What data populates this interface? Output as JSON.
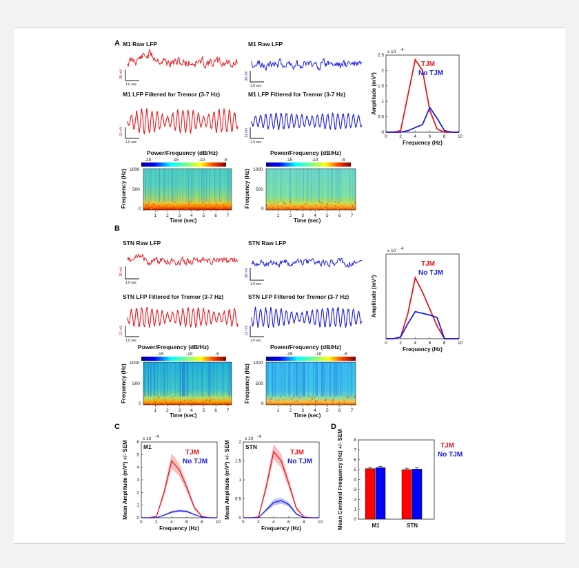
{
  "panels": {
    "a": "A",
    "b": "B",
    "c": "C",
    "d": "D"
  },
  "legend": {
    "tjm": "TJM",
    "no_tjm": "No TJM"
  },
  "colors": {
    "tjm": "#e8161c",
    "no_tjm": "#1a1ae6",
    "bar_red": "#ff0000",
    "bar_blue": "#0000ff"
  },
  "a": {
    "m1_raw_left": "M1 Raw LFP",
    "m1_raw_right": "M1 Raw LFP",
    "m1_filt_left": "M1 LFP Filtered for Tremor (3-7 Hz)",
    "m1_filt_right": "M1 LFP Filtered for Tremor (3-7 Hz)",
    "raw_scale_left": ".38 mV",
    "raw_scale_right": ".38 mV",
    "filt_scale_left": ".11 mV",
    "filt_scale_right": ".11 mV",
    "time_scale": "1.0 sec",
    "spec_left": {
      "title": "Power/Frequency (dB/Hz)",
      "ticks": [
        "-20",
        "-15",
        "-10",
        "-5"
      ]
    },
    "spec_right": {
      "title": "Power/Frequency (dB/Hz)",
      "ticks": [
        "-15",
        "-10",
        "-5"
      ]
    },
    "exponent": "x 10"
  },
  "b": {
    "stn_raw_left": "STN Raw LFP",
    "stn_raw_right": "STN Raw LFP",
    "stn_filt_left": "STN LFP Filtered for Tremor (3-7 Hz)",
    "stn_filt_right": "STN LFP Filtered for Tremor (3-7 Hz)",
    "raw_scale_left": ".38 mV",
    "raw_scale_right": ".38 mV",
    "filt_scale_left": ".11 mV",
    "filt_scale_right": ".11 mV",
    "time_scale": "1.0 sec",
    "spec_left": {
      "title": "Power/Frequency (dB/Hz)",
      "ticks": [
        "-15",
        "-10",
        "-5"
      ]
    },
    "spec_right": {
      "title": "Power/Frequency (dB/Hz)",
      "ticks": [
        "-15",
        "-10",
        "-5"
      ]
    },
    "exponent": "x 10"
  },
  "spec_axes": {
    "ylabel": "Frequency (Hz)",
    "xlabel": "Time (sec)",
    "yticks": [
      "1000",
      "500",
      "0"
    ],
    "xticks": [
      "1",
      "2",
      "3",
      "4",
      "5",
      "6",
      "7"
    ]
  },
  "c": {
    "m1": "M1",
    "stn": "STN",
    "exponent": "x 10"
  },
  "d": {
    "groups": [
      "M1",
      "STN"
    ]
  },
  "chart_data": [
    {
      "type": "line",
      "panel": "A",
      "xlabel": "Frequency (Hz)",
      "ylabel": "Amplitude (mV²)",
      "xlim": [
        0,
        10
      ],
      "ylim": [
        0,
        2.5
      ],
      "y_exponent": "x 10^-4",
      "xticks": [
        "0",
        "2",
        "4",
        "6",
        "8",
        "10"
      ],
      "yticks": [
        "0",
        "0.5",
        "1",
        "1.5",
        "2",
        "2.5"
      ],
      "x": [
        0,
        1,
        2,
        3,
        4,
        5,
        6,
        7,
        8,
        9,
        10
      ],
      "series": [
        {
          "name": "TJM",
          "values": [
            0,
            0,
            0.05,
            1.2,
            2.35,
            2.0,
            0.7,
            0.1,
            0,
            0,
            0
          ]
        },
        {
          "name": "No TJM",
          "values": [
            0,
            0,
            0,
            0.05,
            0.15,
            0.25,
            0.8,
            0.45,
            0.05,
            0,
            0
          ]
        }
      ]
    },
    {
      "type": "line",
      "panel": "B",
      "xlabel": "Frequency (Hz)",
      "ylabel": "Amplitude (mV²)",
      "xlim": [
        0,
        10
      ],
      "ylim": [
        0,
        1
      ],
      "y_exponent": "x 10^-4",
      "xticks": [
        "0",
        "2",
        "4",
        "6",
        "8",
        "10"
      ],
      "yticks": [],
      "x": [
        0,
        1,
        2,
        3,
        4,
        5,
        6,
        7,
        8,
        9,
        10
      ],
      "series": [
        {
          "name": "TJM",
          "values": [
            0,
            0,
            0.02,
            0.3,
            0.72,
            0.55,
            0.35,
            0.15,
            0,
            0,
            0
          ]
        },
        {
          "name": "No TJM",
          "values": [
            0,
            0,
            0.02,
            0.18,
            0.32,
            0.3,
            0.28,
            0.25,
            0,
            0,
            0
          ]
        }
      ]
    },
    {
      "type": "area",
      "panel": "C",
      "title": "M1",
      "xlabel": "Frequency (Hz)",
      "ylabel": "Mean Amplitude (mV²) +/- SEM",
      "xlim": [
        0,
        10
      ],
      "ylim": [
        0,
        6
      ],
      "y_exponent": "x 10^-4",
      "xticks": [
        "0",
        "2",
        "4",
        "6",
        "8",
        "10"
      ],
      "yticks": [
        "0",
        "1",
        "2",
        "3",
        "4",
        "5",
        "6"
      ],
      "x": [
        0,
        1,
        2,
        3,
        4,
        5,
        6,
        7,
        8,
        9,
        10
      ],
      "series": [
        {
          "name": "TJM",
          "values": [
            0,
            0,
            0.1,
            2.0,
            4.5,
            3.8,
            2.4,
            0.8,
            0.1,
            0,
            0
          ],
          "sem": [
            0,
            0,
            0.05,
            0.3,
            0.6,
            0.5,
            0.35,
            0.15,
            0.05,
            0,
            0
          ]
        },
        {
          "name": "No TJM",
          "values": [
            0,
            0,
            0,
            0.2,
            0.45,
            0.55,
            0.5,
            0.25,
            0.05,
            0,
            0
          ],
          "sem": [
            0,
            0,
            0,
            0.05,
            0.1,
            0.1,
            0.1,
            0.05,
            0,
            0,
            0
          ]
        }
      ]
    },
    {
      "type": "area",
      "panel": "C",
      "title": "STN",
      "xlabel": "Frequency (Hz)",
      "ylabel": "Mean Amplitude (mV²) +/- SEM",
      "xlim": [
        0,
        10
      ],
      "ylim": [
        0,
        2
      ],
      "y_exponent": "x 10^-4",
      "xticks": [
        "0",
        "2",
        "4",
        "6",
        "8",
        "10"
      ],
      "yticks": [
        "0",
        "0.5",
        "1",
        "1.5",
        "2"
      ],
      "x": [
        0,
        1,
        2,
        3,
        4,
        5,
        6,
        7,
        8,
        9,
        10
      ],
      "series": [
        {
          "name": "TJM",
          "values": [
            0,
            0,
            0.02,
            0.8,
            1.75,
            1.5,
            0.9,
            0.25,
            0.02,
            0,
            0
          ],
          "sem": [
            0,
            0,
            0.02,
            0.12,
            0.2,
            0.18,
            0.12,
            0.05,
            0,
            0,
            0
          ]
        },
        {
          "name": "No TJM",
          "values": [
            0,
            0,
            0,
            0.2,
            0.4,
            0.45,
            0.35,
            0.1,
            0,
            0,
            0
          ],
          "sem": [
            0,
            0,
            0,
            0.04,
            0.08,
            0.08,
            0.06,
            0.03,
            0,
            0,
            0
          ]
        }
      ]
    },
    {
      "type": "bar",
      "panel": "D",
      "categories": [
        "M1",
        "STN"
      ],
      "ylabel": "Mean Centroid Frequency (Hz) +/- SEM",
      "ylim": [
        0,
        8
      ],
      "yticks": [
        "0",
        "1",
        "2",
        "3",
        "4",
        "5",
        "6",
        "7",
        "8"
      ],
      "series": [
        {
          "name": "TJM",
          "values": [
            5.1,
            5.0
          ]
        },
        {
          "name": "No TJM",
          "values": [
            5.2,
            5.05
          ]
        }
      ]
    }
  ]
}
